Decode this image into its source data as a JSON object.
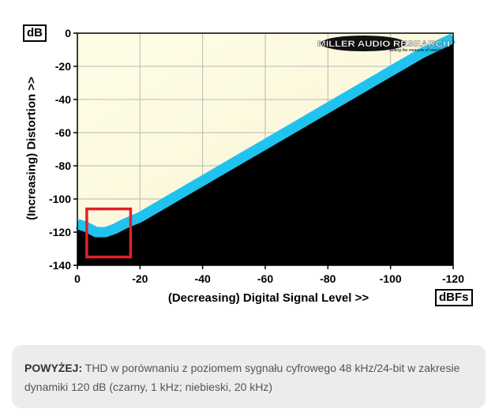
{
  "chart_data": {
    "type": "line",
    "title": "",
    "ylabel": "(Increasing) Distortion >>",
    "xlabel": "(Decreasing) Digital Signal Level >>",
    "y_unit": "dB",
    "x_unit": "dBFs",
    "xlim": [
      0,
      -120
    ],
    "ylim": [
      -140,
      0
    ],
    "x_ticks": [
      0,
      -20,
      -40,
      -60,
      -80,
      -100,
      -120
    ],
    "y_ticks": [
      0,
      -20,
      -40,
      -60,
      -80,
      -100,
      -120,
      -140
    ],
    "grid": true,
    "legend": "none",
    "logo": {
      "line1": "MILLER AUDIO RESEARCH",
      "line2": "Setting the measure of sound quality"
    },
    "series": [
      {
        "color": "#000000",
        "fill": "below",
        "x": [
          0,
          -5,
          -8,
          -12,
          -15,
          -20,
          -30,
          -40,
          -50,
          -60,
          -70,
          -80,
          -90,
          -100,
          -110,
          -120
        ],
        "y": [
          -118,
          -120,
          -121,
          -118,
          -116,
          -112,
          -101,
          -90,
          -79,
          -68,
          -57,
          -46,
          -35,
          -24,
          -13,
          -2
        ]
      },
      {
        "color": "#1fc3ee",
        "fill": "none",
        "x": [
          0,
          -3,
          -6,
          -9,
          -12,
          -15,
          -20,
          -30,
          -40,
          -50,
          -60,
          -70,
          -80,
          -90,
          -100,
          -110,
          -120
        ],
        "y": [
          -115,
          -117,
          -120,
          -120,
          -118,
          -115,
          -111,
          -100,
          -89,
          -78,
          -67,
          -56,
          -45,
          -34,
          -23,
          -12,
          -3
        ]
      }
    ],
    "annotations": [
      {
        "type": "highlight-box",
        "color": "#e0202a",
        "x": [
          -3,
          -17
        ],
        "y": [
          -106,
          -135
        ]
      }
    ]
  },
  "caption": {
    "label": "POWYŻEJ:",
    "text": " THD w porównaniu z poziomem sygnału cyfrowego 48 kHz/24-bit w zakresie dynamiki 120 dB (czarny, 1 kHz; niebieski, 20 kHz)"
  }
}
